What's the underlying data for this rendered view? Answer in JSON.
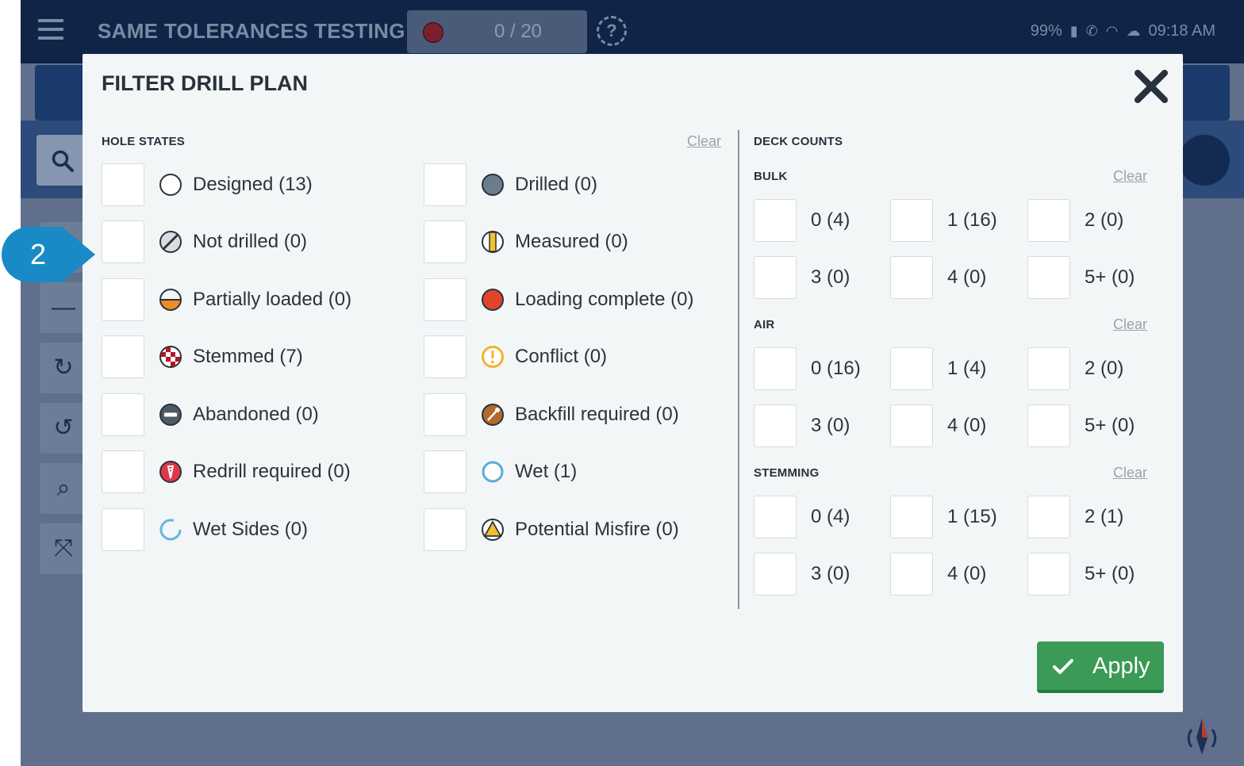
{
  "app": {
    "title": "SAME TOLERANCES TESTING",
    "counter": "0 / 20",
    "status": {
      "battery": "99%",
      "time": "09:18 AM"
    }
  },
  "modal": {
    "title": "FILTER DRILL PLAN",
    "hole_states": {
      "heading": "HOLE STATES",
      "clear_label": "Clear",
      "left_column": [
        {
          "label": "Designed (13)",
          "icon": "designed-icon"
        },
        {
          "label": "Not drilled (0)",
          "icon": "not-drilled-icon"
        },
        {
          "label": "Partially loaded (0)",
          "icon": "partially-loaded-icon"
        },
        {
          "label": "Stemmed (7)",
          "icon": "stemmed-icon"
        },
        {
          "label": "Abandoned (0)",
          "icon": "abandoned-icon"
        },
        {
          "label": "Redrill required (0)",
          "icon": "redrill-required-icon"
        },
        {
          "label": "Wet Sides (0)",
          "icon": "wet-sides-icon"
        }
      ],
      "right_column": [
        {
          "label": "Drilled (0)",
          "icon": "drilled-icon"
        },
        {
          "label": "Measured (0)",
          "icon": "measured-icon"
        },
        {
          "label": "Loading complete (0)",
          "icon": "loading-complete-icon"
        },
        {
          "label": "Conflict (0)",
          "icon": "conflict-icon"
        },
        {
          "label": "Backfill required (0)",
          "icon": "backfill-required-icon"
        },
        {
          "label": "Wet (1)",
          "icon": "wet-icon"
        },
        {
          "label": "Potential Misfire (0)",
          "icon": "potential-misfire-icon"
        }
      ]
    },
    "deck_counts": {
      "heading": "DECK COUNTS",
      "groups": [
        {
          "name": "BULK",
          "clear_label": "Clear",
          "items": [
            "0 (4)",
            "1 (16)",
            "2 (0)",
            "3 (0)",
            "4 (0)",
            "5+ (0)"
          ]
        },
        {
          "name": "AIR",
          "clear_label": "Clear",
          "items": [
            "0 (16)",
            "1 (4)",
            "2 (0)",
            "3 (0)",
            "4 (0)",
            "5+ (0)"
          ]
        },
        {
          "name": "STEMMING",
          "clear_label": "Clear",
          "items": [
            "0 (4)",
            "1 (15)",
            "2 (1)",
            "3 (0)",
            "4 (0)",
            "5+ (0)"
          ]
        }
      ]
    },
    "apply_label": "Apply"
  },
  "callout": {
    "number": "2"
  },
  "colors": {
    "header_bg": "#0f2447",
    "modal_bg": "#f3f6f7",
    "apply_green": "#3a9a56",
    "callout_blue": "#1a8ac6"
  }
}
